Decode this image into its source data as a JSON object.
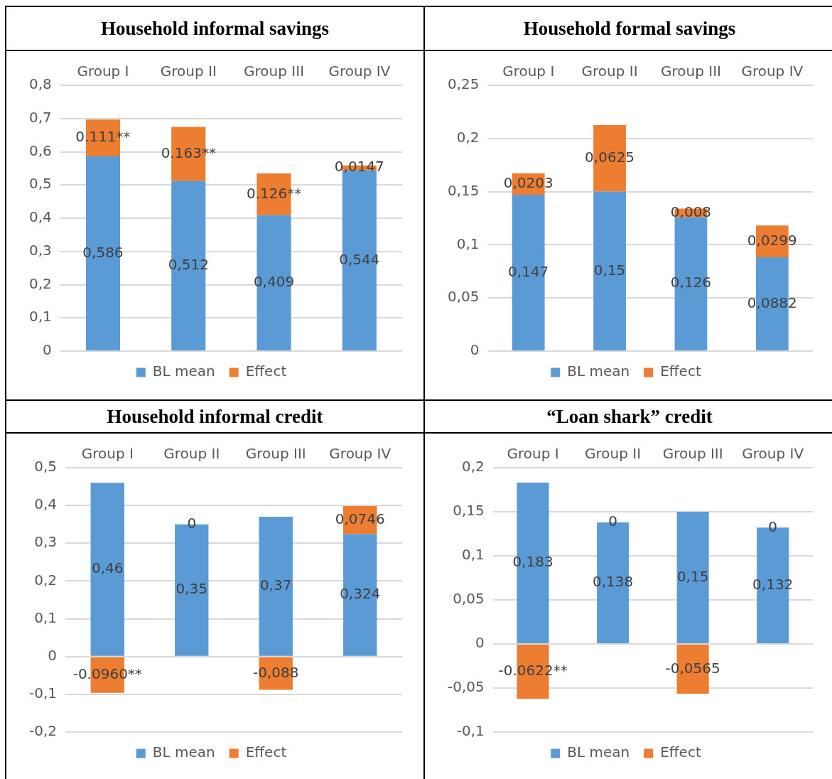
{
  "chart_data": [
    {
      "type": "bar",
      "title": "Household informal savings",
      "categories": [
        "Group I",
        "Group II",
        "Group III",
        "Group IV"
      ],
      "stacked": true,
      "grid": "y",
      "legend": "bottom",
      "ylim": [
        0,
        0.8
      ],
      "yticks": [
        {
          "value": 0,
          "label": "0"
        },
        {
          "value": 0.1,
          "label": "0,1"
        },
        {
          "value": 0.2,
          "label": "0,2"
        },
        {
          "value": 0.3,
          "label": "0,3"
        },
        {
          "value": 0.4,
          "label": "0,4"
        },
        {
          "value": 0.5,
          "label": "0,5"
        },
        {
          "value": 0.6,
          "label": "0,6"
        },
        {
          "value": 0.7,
          "label": "0,7"
        },
        {
          "value": 0.8,
          "label": "0,8"
        }
      ],
      "series": [
        {
          "name": "BL mean",
          "color": "#5b9bd5",
          "values": [
            0.586,
            0.512,
            0.409,
            0.544
          ],
          "value_labels": [
            "0,586",
            "0,512",
            "0,409",
            "0,544"
          ]
        },
        {
          "name": "Effect",
          "color": "#ed7d31",
          "values": [
            0.111,
            0.163,
            0.126,
            0.0147
          ],
          "value_labels": [
            "0.111**",
            "0.163**",
            "0.126**",
            "0,0147"
          ]
        }
      ]
    },
    {
      "type": "bar",
      "title": "Household formal savings",
      "categories": [
        "Group I",
        "Group II",
        "Group III",
        "Group IV"
      ],
      "stacked": true,
      "grid": "y",
      "legend": "bottom",
      "ylim": [
        0,
        0.25
      ],
      "yticks": [
        {
          "value": 0,
          "label": "0"
        },
        {
          "value": 0.05,
          "label": "0,05"
        },
        {
          "value": 0.1,
          "label": "0,1"
        },
        {
          "value": 0.15,
          "label": "0,15"
        },
        {
          "value": 0.2,
          "label": "0,2"
        },
        {
          "value": 0.25,
          "label": "0,25"
        }
      ],
      "series": [
        {
          "name": "BL mean",
          "color": "#5b9bd5",
          "values": [
            0.147,
            0.15,
            0.126,
            0.0882
          ],
          "value_labels": [
            "0,147",
            "0,15",
            "0,126",
            "0,0882"
          ]
        },
        {
          "name": "Effect",
          "color": "#ed7d31",
          "values": [
            0.0203,
            0.0625,
            0.008,
            0.0299
          ],
          "value_labels": [
            "0,0203",
            "0,0625",
            "0,008",
            "0,0299"
          ]
        }
      ]
    },
    {
      "type": "bar",
      "title": "Household informal credit",
      "categories": [
        "Group I",
        "Group II",
        "Group III",
        "Group IV"
      ],
      "stacked": true,
      "grid": "y",
      "legend": "bottom",
      "ylim": [
        -0.2,
        0.5
      ],
      "yticks": [
        {
          "value": -0.2,
          "label": "-0,2"
        },
        {
          "value": -0.1,
          "label": "-0,1"
        },
        {
          "value": 0,
          "label": "0"
        },
        {
          "value": 0.1,
          "label": "0,1"
        },
        {
          "value": 0.2,
          "label": "0,2"
        },
        {
          "value": 0.3,
          "label": "0,3"
        },
        {
          "value": 0.4,
          "label": "0,4"
        },
        {
          "value": 0.5,
          "label": "0,5"
        }
      ],
      "series": [
        {
          "name": "BL mean",
          "color": "#5b9bd5",
          "values": [
            0.46,
            0.35,
            0.37,
            0.324
          ],
          "value_labels": [
            "0,46",
            "0,35",
            "0,37",
            "0,324"
          ]
        },
        {
          "name": "Effect",
          "color": "#ed7d31",
          "values": [
            -0.096,
            0,
            -0.088,
            0.0746
          ],
          "value_labels": [
            "-0.0960**",
            "0",
            "-0,088",
            "0,0746"
          ]
        }
      ]
    },
    {
      "type": "bar",
      "title": "“Loan shark” credit",
      "categories": [
        "Group I",
        "Group II",
        "Group III",
        "Group IV"
      ],
      "stacked": true,
      "grid": "y",
      "legend": "bottom",
      "ylim": [
        -0.1,
        0.2
      ],
      "yticks": [
        {
          "value": -0.1,
          "label": "-0,1"
        },
        {
          "value": -0.05,
          "label": "-0,05"
        },
        {
          "value": 0,
          "label": "0"
        },
        {
          "value": 0.05,
          "label": "0,05"
        },
        {
          "value": 0.1,
          "label": "0,1"
        },
        {
          "value": 0.15,
          "label": "0,15"
        },
        {
          "value": 0.2,
          "label": "0,2"
        }
      ],
      "series": [
        {
          "name": "BL mean",
          "color": "#5b9bd5",
          "values": [
            0.183,
            0.138,
            0.15,
            0.132
          ],
          "value_labels": [
            "0,183",
            "0,138",
            "0,15",
            "0,132"
          ]
        },
        {
          "name": "Effect",
          "color": "#ed7d31",
          "values": [
            -0.0622,
            0,
            -0.0565,
            0
          ],
          "value_labels": [
            "-0.0622**",
            "0",
            "-0,0565",
            "0"
          ]
        }
      ]
    }
  ]
}
